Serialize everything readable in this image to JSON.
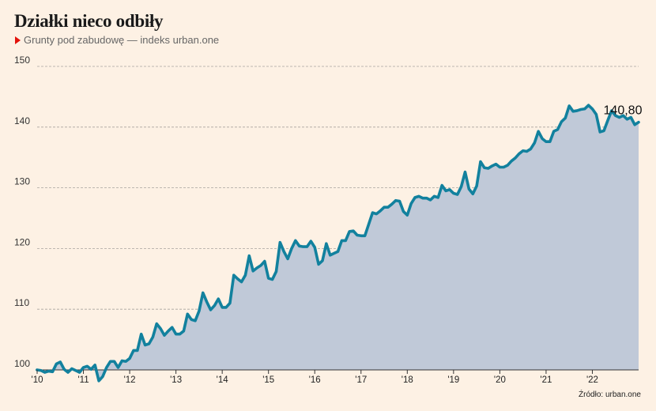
{
  "chart_data": {
    "type": "area",
    "title": "Działki nieco odbiły",
    "series": [
      {
        "name": "Grunty pod zabudowę — indeks urban.one",
        "color": "#12819e",
        "fill": "#c0c9d8",
        "values": [
          100.0,
          99.9,
          99.6,
          99.8,
          99.7,
          101.0,
          101.3,
          100.1,
          99.6,
          100.2,
          99.9,
          99.6,
          100.4,
          100.6,
          100.1,
          100.8,
          98.2,
          98.9,
          100.4,
          101.4,
          101.4,
          100.4,
          101.5,
          101.4,
          101.9,
          103.2,
          103.2,
          105.9,
          104.1,
          104.3,
          105.4,
          107.6,
          106.8,
          105.7,
          106.4,
          107.0,
          105.9,
          105.9,
          106.4,
          109.2,
          108.3,
          108.1,
          109.7,
          112.7,
          111.2,
          109.9,
          110.6,
          111.7,
          110.3,
          110.3,
          111.0,
          115.6,
          115.0,
          114.5,
          115.6,
          118.8,
          116.3,
          116.8,
          117.2,
          117.9,
          115.1,
          114.9,
          116.2,
          121.0,
          119.5,
          118.3,
          120.0,
          121.3,
          120.4,
          120.3,
          120.3,
          121.2,
          120.2,
          117.4,
          118.0,
          120.8,
          118.9,
          119.2,
          119.5,
          121.3,
          121.3,
          122.8,
          122.9,
          122.2,
          122.1,
          122.1,
          124.0,
          125.9,
          125.7,
          126.2,
          126.8,
          126.8,
          127.3,
          127.9,
          127.8,
          126.1,
          125.5,
          127.4,
          128.4,
          128.6,
          128.3,
          128.3,
          128.0,
          128.6,
          128.4,
          130.4,
          129.5,
          129.7,
          129.1,
          128.9,
          130.2,
          132.6,
          129.8,
          129.0,
          130.3,
          134.3,
          133.3,
          133.2,
          133.6,
          133.9,
          133.4,
          133.4,
          133.7,
          134.4,
          134.9,
          135.6,
          136.1,
          136.0,
          136.4,
          137.4,
          139.3,
          138.1,
          137.6,
          137.6,
          139.3,
          139.6,
          140.9,
          141.5,
          143.5,
          142.6,
          142.7,
          142.9,
          143.0,
          143.6,
          143.0,
          142.1,
          139.2,
          139.4,
          141.1,
          142.7,
          141.9,
          141.6,
          141.9,
          141.3,
          141.6,
          140.4,
          140.8
        ]
      }
    ],
    "x_start": 2010,
    "x_end": 2023,
    "xticks": [
      {
        "value": 2010,
        "label": "'10"
      },
      {
        "value": 2011,
        "label": "'11"
      },
      {
        "value": 2012,
        "label": "'12"
      },
      {
        "value": 2013,
        "label": "'13"
      },
      {
        "value": 2014,
        "label": "'14"
      },
      {
        "value": 2015,
        "label": "'15"
      },
      {
        "value": 2016,
        "label": "'16"
      },
      {
        "value": 2017,
        "label": "'17"
      },
      {
        "value": 2018,
        "label": "'18"
      },
      {
        "value": 2019,
        "label": "'19"
      },
      {
        "value": 2020,
        "label": "'20"
      },
      {
        "value": 2021,
        "label": "'21"
      },
      {
        "value": 2022,
        "label": "'22"
      }
    ],
    "yticks": [
      100,
      110,
      120,
      130,
      140,
      150
    ],
    "ylim": [
      100,
      150
    ],
    "grid": true,
    "end_label": "140,80",
    "source": "Źródło: urban.one"
  }
}
